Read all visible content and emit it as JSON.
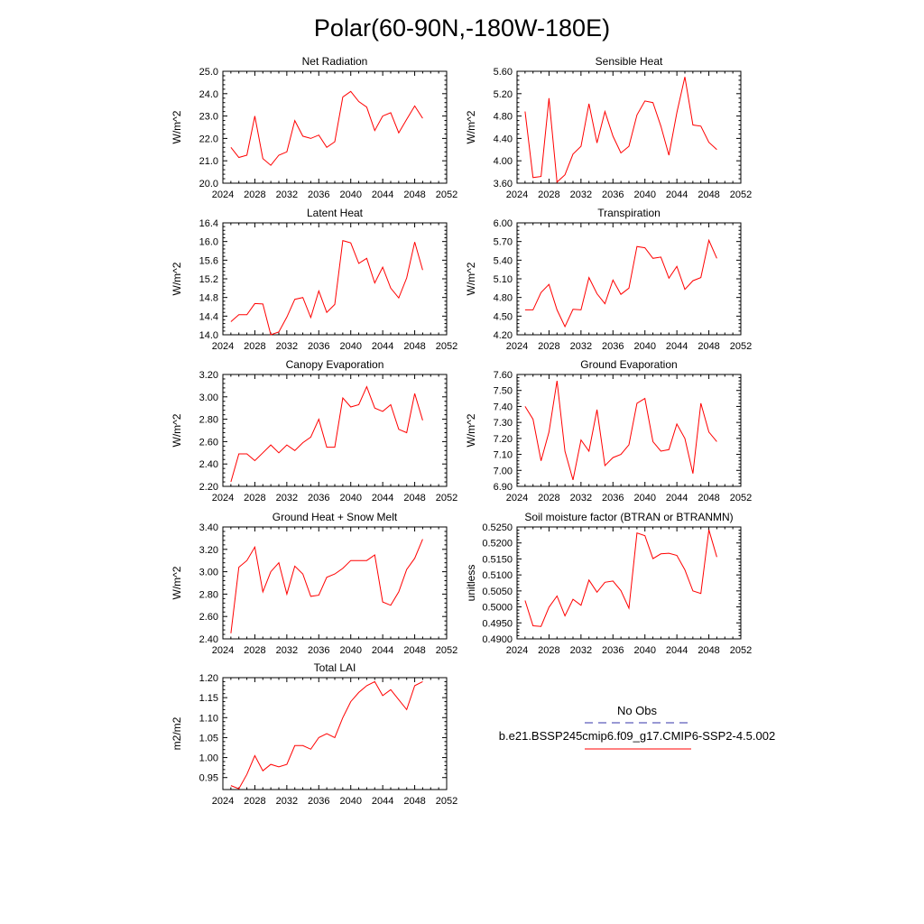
{
  "title": "Polar(60-90N,-180W-180E)",
  "colors": {
    "series": "#ff0000",
    "obs": "#3333aa",
    "axis": "#000000"
  },
  "legend": {
    "obs_label": "No Obs",
    "model_label": "b.e21.BSSP245cmip6.f09_g17.CMIP6-SSP2-4.5.002"
  },
  "chart_data": [
    {
      "type": "line",
      "title": "Net Radiation",
      "ylabel": "W/m^2",
      "xlim": [
        2024,
        2052
      ],
      "xticks": [
        "2024",
        "2028",
        "2032",
        "2036",
        "2040",
        "2044",
        "2048",
        "2052"
      ],
      "ylim": [
        20.0,
        25.0
      ],
      "yticks": [
        "20.0",
        "21.0",
        "22.0",
        "23.0",
        "24.0",
        "25.0"
      ],
      "x": [
        2025,
        2026,
        2027,
        2028,
        2029,
        2030,
        2031,
        2032,
        2033,
        2034,
        2035,
        2036,
        2037,
        2038,
        2039,
        2040,
        2041,
        2042,
        2043,
        2044,
        2045,
        2046,
        2047,
        2048,
        2049
      ],
      "values": [
        21.6,
        21.15,
        21.25,
        23.0,
        21.1,
        20.8,
        21.25,
        21.4,
        22.8,
        22.1,
        22.0,
        22.15,
        21.6,
        21.85,
        23.85,
        24.1,
        23.65,
        23.4,
        22.35,
        23.0,
        23.15,
        22.25,
        22.85,
        23.45,
        22.9
      ]
    },
    {
      "type": "line",
      "title": "Sensible Heat",
      "ylabel": "W/m^2",
      "xlim": [
        2024,
        2052
      ],
      "xticks": [
        "2024",
        "2028",
        "2032",
        "2036",
        "2040",
        "2044",
        "2048",
        "2052"
      ],
      "ylim": [
        3.6,
        5.6
      ],
      "yticks": [
        "3.60",
        "4.00",
        "4.40",
        "4.80",
        "5.20",
        "5.60"
      ],
      "x": [
        2025,
        2026,
        2027,
        2028,
        2029,
        2030,
        2031,
        2032,
        2033,
        2034,
        2035,
        2036,
        2037,
        2038,
        2039,
        2040,
        2041,
        2042,
        2043,
        2044,
        2045,
        2046,
        2047,
        2048,
        2049
      ],
      "values": [
        4.88,
        3.7,
        3.72,
        5.12,
        3.62,
        3.75,
        4.12,
        4.26,
        5.02,
        4.32,
        4.88,
        4.44,
        4.14,
        4.26,
        4.82,
        5.07,
        5.04,
        4.62,
        4.1,
        4.86,
        5.5,
        4.64,
        4.62,
        4.33,
        4.2
      ]
    },
    {
      "type": "line",
      "title": "Latent Heat",
      "ylabel": "W/m^2",
      "xlim": [
        2024,
        2052
      ],
      "xticks": [
        "2024",
        "2028",
        "2032",
        "2036",
        "2040",
        "2044",
        "2048",
        "2052"
      ],
      "ylim": [
        14.0,
        16.4
      ],
      "yticks": [
        "14.0",
        "14.4",
        "14.8",
        "15.2",
        "15.6",
        "16.0",
        "16.4"
      ],
      "x": [
        2025,
        2026,
        2027,
        2028,
        2029,
        2030,
        2031,
        2032,
        2033,
        2034,
        2035,
        2036,
        2037,
        2038,
        2039,
        2040,
        2041,
        2042,
        2043,
        2044,
        2045,
        2046,
        2047,
        2048,
        2049
      ],
      "values": [
        14.28,
        14.43,
        14.43,
        14.67,
        14.66,
        14.0,
        14.06,
        14.38,
        14.76,
        14.8,
        14.37,
        14.94,
        14.48,
        14.65,
        16.02,
        15.97,
        15.53,
        15.64,
        15.11,
        15.45,
        15.0,
        14.79,
        15.22,
        15.99,
        15.39
      ]
    },
    {
      "type": "line",
      "title": "Transpiration",
      "ylabel": "W/m^2",
      "xlim": [
        2024,
        2052
      ],
      "xticks": [
        "2024",
        "2028",
        "2032",
        "2036",
        "2040",
        "2044",
        "2048",
        "2052"
      ],
      "ylim": [
        4.2,
        6.0
      ],
      "yticks": [
        "4.20",
        "4.50",
        "4.80",
        "5.10",
        "5.40",
        "5.70",
        "6.00"
      ],
      "x": [
        2025,
        2026,
        2027,
        2028,
        2029,
        2030,
        2031,
        2032,
        2033,
        2034,
        2035,
        2036,
        2037,
        2038,
        2039,
        2040,
        2041,
        2042,
        2043,
        2044,
        2045,
        2046,
        2047,
        2048,
        2049
      ],
      "values": [
        4.6,
        4.6,
        4.88,
        5.01,
        4.6,
        4.33,
        4.61,
        4.6,
        5.12,
        4.86,
        4.7,
        5.08,
        4.85,
        4.95,
        5.62,
        5.6,
        5.43,
        5.45,
        5.11,
        5.3,
        4.93,
        5.07,
        5.12,
        5.72,
        5.43
      ]
    },
    {
      "type": "line",
      "title": "Canopy Evaporation",
      "ylabel": "W/m^2",
      "xlim": [
        2024,
        2052
      ],
      "xticks": [
        "2024",
        "2028",
        "2032",
        "2036",
        "2040",
        "2044",
        "2048",
        "2052"
      ],
      "ylim": [
        2.2,
        3.2
      ],
      "yticks": [
        "2.20",
        "2.40",
        "2.60",
        "2.80",
        "3.00",
        "3.20"
      ],
      "x": [
        2025,
        2026,
        2027,
        2028,
        2029,
        2030,
        2031,
        2032,
        2033,
        2034,
        2035,
        2036,
        2037,
        2038,
        2039,
        2040,
        2041,
        2042,
        2043,
        2044,
        2045,
        2046,
        2047,
        2048,
        2049
      ],
      "values": [
        2.24,
        2.49,
        2.49,
        2.43,
        2.5,
        2.57,
        2.5,
        2.57,
        2.52,
        2.59,
        2.64,
        2.8,
        2.55,
        2.55,
        2.99,
        2.91,
        2.93,
        3.09,
        2.9,
        2.87,
        2.93,
        2.71,
        2.68,
        3.03,
        2.79
      ]
    },
    {
      "type": "line",
      "title": "Ground Evaporation",
      "ylabel": "W/m^2",
      "xlim": [
        2024,
        2052
      ],
      "xticks": [
        "2024",
        "2028",
        "2032",
        "2036",
        "2040",
        "2044",
        "2048",
        "2052"
      ],
      "ylim": [
        6.9,
        7.6
      ],
      "yticks": [
        "6.90",
        "7.00",
        "7.10",
        "7.20",
        "7.30",
        "7.40",
        "7.50",
        "7.60"
      ],
      "x": [
        2025,
        2026,
        2027,
        2028,
        2029,
        2030,
        2031,
        2032,
        2033,
        2034,
        2035,
        2036,
        2037,
        2038,
        2039,
        2040,
        2041,
        2042,
        2043,
        2044,
        2045,
        2046,
        2047,
        2048,
        2049
      ],
      "values": [
        7.4,
        7.32,
        7.06,
        7.24,
        7.56,
        7.12,
        6.94,
        7.19,
        7.12,
        7.38,
        7.03,
        7.08,
        7.1,
        7.16,
        7.42,
        7.45,
        7.18,
        7.12,
        7.13,
        7.29,
        7.2,
        6.98,
        7.42,
        7.24,
        7.18
      ]
    },
    {
      "type": "line",
      "title": "Ground Heat + Snow Melt",
      "ylabel": "W/m^2",
      "xlim": [
        2024,
        2052
      ],
      "xticks": [
        "2024",
        "2028",
        "2032",
        "2036",
        "2040",
        "2044",
        "2048",
        "2052"
      ],
      "ylim": [
        2.4,
        3.4
      ],
      "yticks": [
        "2.40",
        "2.60",
        "2.80",
        "3.00",
        "3.20",
        "3.40"
      ],
      "x": [
        2025,
        2026,
        2027,
        2028,
        2029,
        2030,
        2031,
        2032,
        2033,
        2034,
        2035,
        2036,
        2037,
        2038,
        2039,
        2040,
        2041,
        2042,
        2043,
        2044,
        2045,
        2046,
        2047,
        2048,
        2049
      ],
      "values": [
        2.45,
        3.04,
        3.1,
        3.22,
        2.82,
        3.0,
        3.08,
        2.8,
        3.05,
        2.98,
        2.78,
        2.79,
        2.95,
        2.98,
        3.03,
        3.1,
        3.1,
        3.1,
        3.15,
        2.73,
        2.7,
        2.82,
        3.02,
        3.12,
        3.29
      ]
    },
    {
      "type": "line",
      "title": "Soil moisture factor (BTRAN or BTRANMN)",
      "ylabel": "unitless",
      "xlim": [
        2024,
        2052
      ],
      "xticks": [
        "2024",
        "2028",
        "2032",
        "2036",
        "2040",
        "2044",
        "2048",
        "2052"
      ],
      "ylim": [
        0.49,
        0.525
      ],
      "yticks": [
        "0.4900",
        "0.4950",
        "0.5000",
        "0.5050",
        "0.5100",
        "0.5150",
        "0.5200",
        "0.5250"
      ],
      "x": [
        2025,
        2026,
        2027,
        2028,
        2029,
        2030,
        2031,
        2032,
        2033,
        2034,
        2035,
        2036,
        2037,
        2038,
        2039,
        2040,
        2041,
        2042,
        2043,
        2044,
        2045,
        2046,
        2047,
        2048,
        2049
      ],
      "values": [
        0.502,
        0.4941,
        0.4939,
        0.4999,
        0.5034,
        0.4972,
        0.5024,
        0.5005,
        0.5084,
        0.5046,
        0.5077,
        0.5081,
        0.5051,
        0.4996,
        0.5231,
        0.5223,
        0.5151,
        0.5166,
        0.5168,
        0.5161,
        0.5116,
        0.505,
        0.5042,
        0.5241,
        0.5156
      ]
    },
    {
      "type": "line",
      "title": "Total LAI",
      "ylabel": "m2/m2",
      "xlim": [
        2024,
        2052
      ],
      "xticks": [
        "2024",
        "2028",
        "2032",
        "2036",
        "2040",
        "2044",
        "2048",
        "2052"
      ],
      "ylim": [
        0.92,
        1.2
      ],
      "yticks": [
        "0.95",
        "1.00",
        "1.05",
        "1.10",
        "1.15",
        "1.20"
      ],
      "x": [
        2025,
        2026,
        2027,
        2028,
        2029,
        2030,
        2031,
        2032,
        2033,
        2034,
        2035,
        2036,
        2037,
        2038,
        2039,
        2040,
        2041,
        2042,
        2043,
        2044,
        2045,
        2046,
        2047,
        2048,
        2049
      ],
      "values": [
        0.93,
        0.922,
        0.958,
        1.005,
        0.967,
        0.983,
        0.977,
        0.983,
        1.03,
        1.03,
        1.021,
        1.05,
        1.06,
        1.05,
        1.1,
        1.14,
        1.163,
        1.18,
        1.19,
        1.155,
        1.17,
        1.145,
        1.12,
        1.18,
        1.19
      ]
    }
  ]
}
